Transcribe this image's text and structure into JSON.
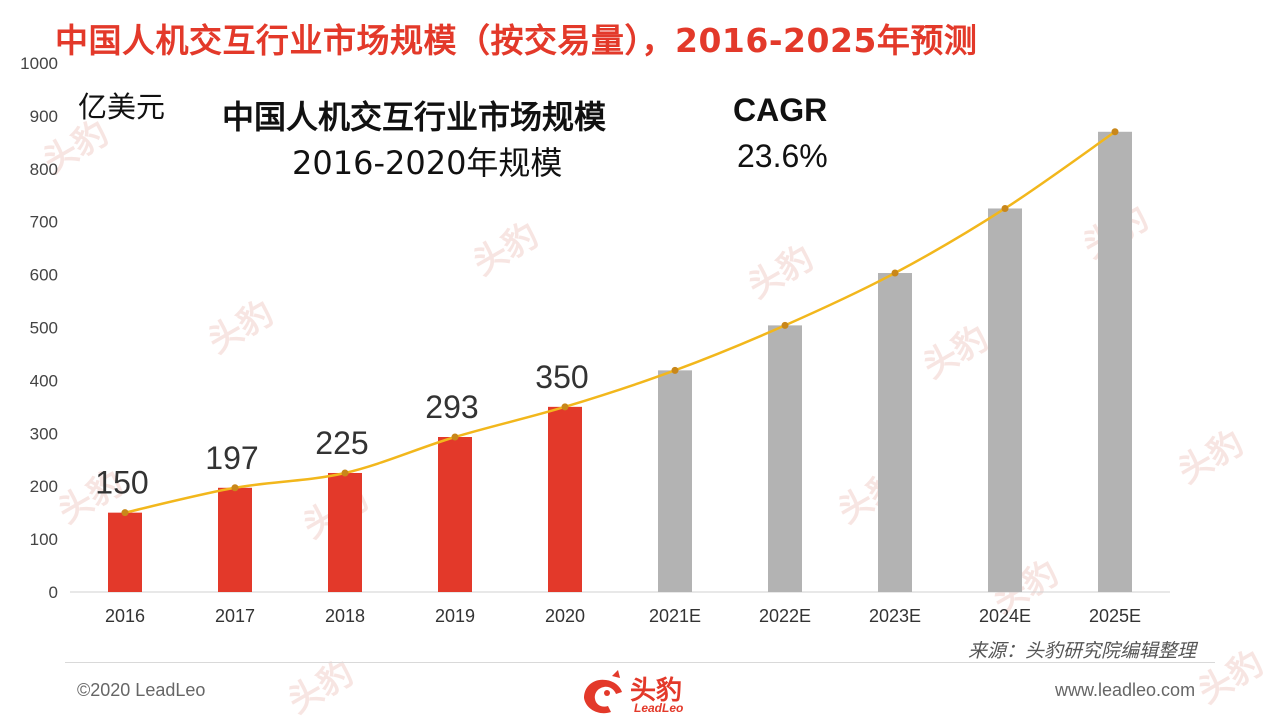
{
  "title": "中国人机交互行业市场规模（按交易量），2016-2025年预测",
  "unit": "亿美元",
  "box": {
    "title": "中国人机交互行业市场规模",
    "subtitle": "2016-2020年规模",
    "cagr_label": "CAGR",
    "cagr_value": "23.6%"
  },
  "source": "来源：头豹研究院编辑整理",
  "footer": {
    "copyright": "©2020 LeadLeo",
    "website": "www.leadleo.com",
    "logo_name": "头豹",
    "logo_sub": "LeadLeo"
  },
  "watermark_text": "头豹",
  "colors": {
    "accent": "#e3392a",
    "actual_bar": "#e3392a",
    "forecast_bar": "#b3b3b3",
    "trend_line": "#f2b71c",
    "trend_marker": "#c9871a"
  },
  "chart_data": {
    "type": "bar",
    "categories": [
      "2016",
      "2017",
      "2018",
      "2019",
      "2020",
      "2021E",
      "2022E",
      "2023E",
      "2024E",
      "2025E"
    ],
    "values": [
      150,
      197,
      225,
      293,
      350,
      419,
      504,
      603,
      725,
      870
    ],
    "data_labels": [
      "150",
      "197",
      "225",
      "293",
      "350",
      "",
      "",
      "",
      "",
      ""
    ],
    "bar_groups": [
      "actual",
      "actual",
      "actual",
      "actual",
      "actual",
      "forecast",
      "forecast",
      "forecast",
      "forecast",
      "forecast"
    ],
    "trend_line": true,
    "ylim": [
      0,
      1000
    ],
    "yticks": [
      0,
      100,
      200,
      300,
      400,
      500,
      600,
      700,
      800,
      900,
      1000
    ],
    "grid": false
  }
}
